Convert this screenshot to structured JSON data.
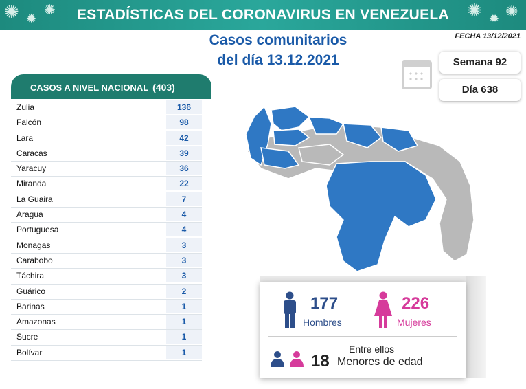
{
  "header": {
    "title": "ESTADÍSTICAS DEL CORONAVIRUS EN VENEZUELA"
  },
  "subtitle": {
    "line1": "Casos comunitarios",
    "line2": "del día 13.12.2021"
  },
  "fecha": "FECHA 13/12/2021",
  "semana": "Semana 92",
  "dia": "Día 638",
  "table": {
    "title": "CASOS A NIVEL NACIONAL",
    "total": "(403)",
    "rows": [
      {
        "state": "Zulia",
        "value": "136"
      },
      {
        "state": "Falcón",
        "value": "98"
      },
      {
        "state": "Lara",
        "value": "42"
      },
      {
        "state": "Caracas",
        "value": "39"
      },
      {
        "state": "Yaracuy",
        "value": "36"
      },
      {
        "state": "Miranda",
        "value": "22"
      },
      {
        "state": "La Guaira",
        "value": "7"
      },
      {
        "state": "Aragua",
        "value": "4"
      },
      {
        "state": "Portuguesa",
        "value": "4"
      },
      {
        "state": "Monagas",
        "value": "3"
      },
      {
        "state": "Carabobo",
        "value": "3"
      },
      {
        "state": "Táchira",
        "value": "3"
      },
      {
        "state": "Guárico",
        "value": "2"
      },
      {
        "state": "Barinas",
        "value": "1"
      },
      {
        "state": "Amazonas",
        "value": "1"
      },
      {
        "state": "Sucre",
        "value": "1"
      },
      {
        "state": "Bolívar",
        "value": "1"
      }
    ]
  },
  "stats": {
    "men_count": "177",
    "men_label": "Hombres",
    "women_count": "226",
    "women_label": "Mujeres",
    "entre": "Entre ellos",
    "minors_count": "18",
    "minors_label": "Menores de edad"
  },
  "colors": {
    "teal": "#1f7c6e",
    "blue": "#1a5aa8",
    "map_affected": "#2f78c4",
    "map_other": "#b9b9b9",
    "men": "#2d4e8a",
    "women": "#d63b9b"
  },
  "icons": [
    "virus-icon",
    "calendar-icon",
    "man-icon",
    "woman-icon",
    "children-icon"
  ]
}
